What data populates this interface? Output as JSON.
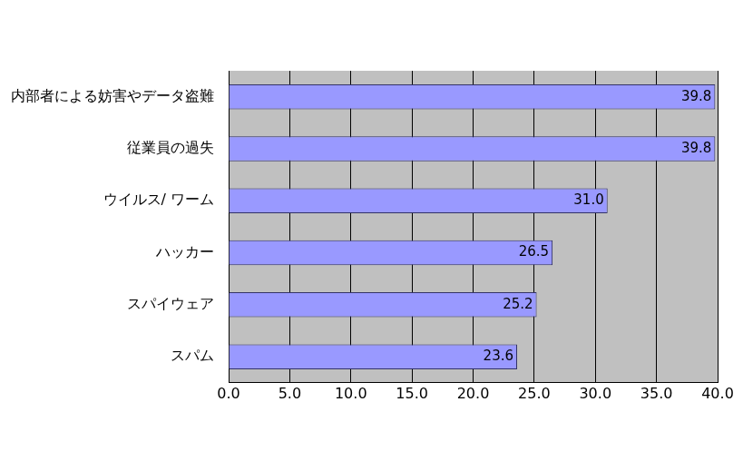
{
  "chart_data": {
    "type": "bar",
    "orientation": "horizontal",
    "categories": [
      "内部者による妨害やデータ盗難",
      "従業員の過失",
      "ウイルス/ ワーム",
      "ハッカー",
      "スパイウェア",
      "スパム"
    ],
    "values": [
      39.8,
      39.8,
      31.0,
      26.5,
      25.2,
      23.6
    ],
    "value_labels": [
      "39.8",
      "39.8",
      "31.0",
      "26.5",
      "25.2",
      "23.6"
    ],
    "color": "#9999ff",
    "xlim": [
      0,
      40
    ],
    "xticks": [
      {
        "value": 0,
        "label": "0.0"
      },
      {
        "value": 5,
        "label": "5.0"
      },
      {
        "value": 10,
        "label": "10.0"
      },
      {
        "value": 15,
        "label": "15.0"
      },
      {
        "value": 20,
        "label": "20.0"
      },
      {
        "value": 25,
        "label": "25.0"
      },
      {
        "value": 30,
        "label": "30.0"
      },
      {
        "value": 35,
        "label": "35.0"
      },
      {
        "value": 40,
        "label": "40.0"
      }
    ],
    "grid": true,
    "data_labels": true
  }
}
